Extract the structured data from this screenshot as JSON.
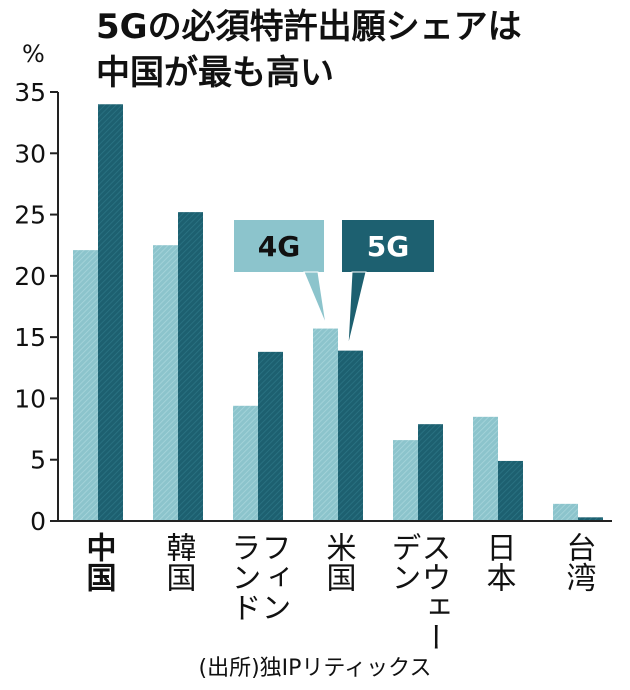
{
  "title_line1": "5Gの必須特許出願シェアは",
  "title_line2": "中国が最も高い",
  "unit": "%",
  "source": "(出所)独IPリティックス",
  "colors": {
    "series_4g": "#8cc4cc",
    "series_5g": "#1d6070",
    "axis": "#222222"
  },
  "chart_data": {
    "type": "bar",
    "title": "5Gの必須特許出願シェアは中国が最も高い",
    "ylabel": "%",
    "ylim": [
      0,
      35
    ],
    "yticks": [
      "0",
      "5",
      "10",
      "15",
      "20",
      "25",
      "30",
      "35"
    ],
    "categories": [
      "中国",
      "韓国",
      "フィンランド",
      "米国",
      "スウェーデン",
      "日本",
      "台湾"
    ],
    "category_columns": [
      [
        "中国"
      ],
      [
        "韓国"
      ],
      [
        "フィン",
        "ランド"
      ],
      [
        "米国"
      ],
      [
        "スウェー",
        "デン"
      ],
      [
        "日本"
      ],
      [
        "台湾"
      ]
    ],
    "series": [
      {
        "name": "4G",
        "values": [
          22.1,
          22.5,
          9.4,
          15.7,
          6.6,
          8.5,
          1.4
        ]
      },
      {
        "name": "5G",
        "values": [
          34.0,
          25.2,
          13.8,
          13.9,
          7.9,
          4.9,
          0.3
        ]
      }
    ],
    "legend": "inside-top-center",
    "grid": false
  }
}
